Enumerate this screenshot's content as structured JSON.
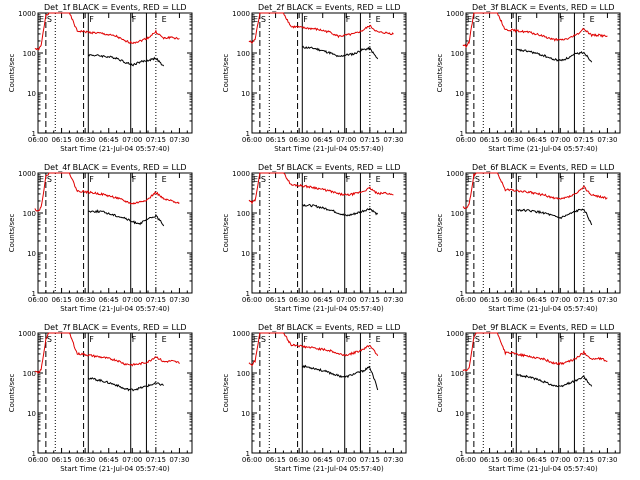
{
  "figure": {
    "time_ticks": [
      "06:00",
      "06:15",
      "06:30",
      "06:45",
      "07:00",
      "07:15",
      "07:30"
    ],
    "y_ticks": [
      "1000",
      "100",
      "10",
      "1"
    ],
    "ylabel": "Counts/sec",
    "xlabel": "Start Time (21-Jul-04 05:57:40)",
    "colors": {
      "events": "#000000",
      "lld": "#e00000"
    },
    "markers": {
      "E_start": "06:00",
      "S_dash": "06:05",
      "S_dot": "06:11",
      "F_dash": "06:29",
      "F_solid_1": "06:32",
      "F_solid_2": "06:59",
      "E_solid": "07:09",
      "E_dot": "07:15",
      "E_end": "07:18"
    }
  },
  "chart_data": [
    {
      "type": "line",
      "title": "Det_1f BLACK = Events, RED = LLD",
      "xlabel": "Start Time (21-Jul-04 05:57:40)",
      "ylabel": "Counts/sec",
      "scale": "log",
      "ylim": [
        1,
        1000
      ],
      "x": [
        "05:58",
        "06:00",
        "06:02",
        "06:05",
        "06:07",
        "06:10",
        "06:15",
        "06:20",
        "06:25",
        "06:28",
        "06:32",
        "06:40",
        "06:50",
        "06:55",
        "07:00",
        "07:05",
        "07:10",
        "07:15",
        "07:20",
        "07:25",
        "07:30"
      ],
      "series": [
        {
          "name": "LLD",
          "color": "red",
          "values": [
            130,
            120,
            150,
            900,
            1000,
            1000,
            1000,
            1000,
            350,
            350,
            330,
            310,
            260,
            200,
            180,
            200,
            240,
            340,
            230,
            250,
            220
          ]
        },
        {
          "name": "Events",
          "color": "black",
          "values": [
            null,
            null,
            null,
            null,
            null,
            null,
            null,
            null,
            null,
            null,
            90,
            85,
            75,
            60,
            50,
            60,
            65,
            75,
            45,
            null,
            null
          ]
        }
      ]
    },
    {
      "type": "line",
      "title": "Det_2f BLACK = Events, RED = LLD",
      "xlabel": "Start Time (21-Jul-04 05:57:40)",
      "ylabel": "Counts/sec",
      "scale": "log",
      "ylim": [
        1,
        1000
      ],
      "x": [
        "05:58",
        "06:00",
        "06:02",
        "06:05",
        "06:07",
        "06:10",
        "06:15",
        "06:20",
        "06:25",
        "06:28",
        "06:32",
        "06:40",
        "06:50",
        "06:55",
        "07:00",
        "07:05",
        "07:10",
        "07:15",
        "07:20",
        "07:25",
        "07:30"
      ],
      "series": [
        {
          "name": "LLD",
          "color": "red",
          "values": [
            200,
            180,
            220,
            1000,
            1000,
            1000,
            1000,
            1000,
            450,
            450,
            430,
            400,
            330,
            260,
            280,
            300,
            360,
            480,
            330,
            320,
            300
          ]
        },
        {
          "name": "Events",
          "color": "black",
          "values": [
            null,
            null,
            null,
            null,
            null,
            null,
            null,
            null,
            null,
            null,
            140,
            130,
            100,
            80,
            90,
            95,
            120,
            130,
            70,
            null,
            null
          ]
        }
      ]
    },
    {
      "type": "line",
      "title": "Det_3f BLACK = Events, RED = LLD",
      "xlabel": "Start Time (21-Jul-04 05:57:40)",
      "ylabel": "Counts/sec",
      "scale": "log",
      "ylim": [
        1,
        1000
      ],
      "x": [
        "05:58",
        "06:00",
        "06:02",
        "06:05",
        "06:07",
        "06:10",
        "06:15",
        "06:20",
        "06:25",
        "06:28",
        "06:32",
        "06:40",
        "06:50",
        "06:55",
        "07:00",
        "07:05",
        "07:10",
        "07:15",
        "07:20",
        "07:25",
        "07:30"
      ],
      "series": [
        {
          "name": "LLD",
          "color": "red",
          "values": [
            160,
            150,
            190,
            1000,
            1000,
            1000,
            1000,
            1000,
            380,
            380,
            360,
            330,
            260,
            220,
            210,
            230,
            280,
            400,
            280,
            280,
            260
          ]
        },
        {
          "name": "Events",
          "color": "black",
          "values": [
            null,
            null,
            null,
            null,
            null,
            null,
            null,
            null,
            null,
            null,
            120,
            110,
            85,
            70,
            65,
            75,
            95,
            105,
            60,
            null,
            null
          ]
        }
      ]
    },
    {
      "type": "line",
      "title": "Det_4f BLACK = Events, RED = LLD",
      "xlabel": "Start Time (21-Jul-04 05:57:40)",
      "ylabel": "Counts/sec",
      "scale": "log",
      "ylim": [
        1,
        1000
      ],
      "x": [
        "05:58",
        "06:00",
        "06:02",
        "06:05",
        "06:07",
        "06:10",
        "06:15",
        "06:20",
        "06:25",
        "06:28",
        "06:32",
        "06:40",
        "06:50",
        "06:55",
        "07:00",
        "07:05",
        "07:10",
        "07:15",
        "07:20",
        "07:25",
        "07:30"
      ],
      "series": [
        {
          "name": "LLD",
          "color": "red",
          "values": [
            130,
            110,
            140,
            800,
            1000,
            1000,
            1000,
            1000,
            350,
            350,
            330,
            300,
            240,
            200,
            170,
            190,
            220,
            330,
            220,
            200,
            180
          ]
        },
        {
          "name": "Events",
          "color": "black",
          "values": [
            null,
            null,
            null,
            null,
            null,
            null,
            null,
            null,
            null,
            null,
            110,
            110,
            85,
            75,
            60,
            55,
            70,
            85,
            50,
            null,
            null
          ]
        }
      ]
    },
    {
      "type": "line",
      "title": "Det_5f BLACK = Events, RED = LLD",
      "xlabel": "Start Time (21-Jul-04 05:57:40)",
      "ylabel": "Counts/sec",
      "scale": "log",
      "ylim": [
        1,
        1000
      ],
      "x": [
        "05:58",
        "06:00",
        "06:02",
        "06:05",
        "06:07",
        "06:10",
        "06:15",
        "06:20",
        "06:25",
        "06:28",
        "06:32",
        "06:40",
        "06:50",
        "06:55",
        "07:00",
        "07:05",
        "07:10",
        "07:15",
        "07:20",
        "07:25",
        "07:30"
      ],
      "series": [
        {
          "name": "LLD",
          "color": "red",
          "values": [
            200,
            180,
            210,
            1000,
            1000,
            1000,
            1000,
            1000,
            500,
            500,
            480,
            430,
            350,
            300,
            280,
            300,
            340,
            420,
            300,
            320,
            280
          ]
        },
        {
          "name": "Events",
          "color": "black",
          "values": [
            null,
            null,
            null,
            null,
            null,
            null,
            null,
            null,
            null,
            null,
            160,
            150,
            120,
            100,
            85,
            95,
            110,
            130,
            90,
            null,
            null
          ]
        }
      ]
    },
    {
      "type": "line",
      "title": "Det_6f BLACK = Events, RED = LLD",
      "xlabel": "Start Time (21-Jul-04 05:57:40)",
      "ylabel": "Counts/sec",
      "scale": "log",
      "ylim": [
        1,
        1000
      ],
      "x": [
        "05:58",
        "06:00",
        "06:02",
        "06:05",
        "06:07",
        "06:10",
        "06:15",
        "06:20",
        "06:25",
        "06:28",
        "06:32",
        "06:40",
        "06:50",
        "06:55",
        "07:00",
        "07:05",
        "07:10",
        "07:15",
        "07:20",
        "07:25",
        "07:30"
      ],
      "series": [
        {
          "name": "LLD",
          "color": "red",
          "values": [
            140,
            130,
            160,
            900,
            1000,
            1000,
            1000,
            1000,
            380,
            380,
            360,
            330,
            280,
            240,
            220,
            250,
            300,
            450,
            280,
            260,
            230
          ]
        },
        {
          "name": "Events",
          "color": "black",
          "values": [
            null,
            null,
            null,
            null,
            null,
            null,
            null,
            null,
            null,
            null,
            120,
            115,
            100,
            85,
            75,
            90,
            110,
            130,
            50,
            null,
            null
          ]
        }
      ]
    },
    {
      "type": "line",
      "title": "Det_7f BLACK = Events, RED = LLD",
      "xlabel": "Start Time (21-Jul-04 05:57:40)",
      "ylabel": "Counts/sec",
      "scale": "log",
      "ylim": [
        1,
        1000
      ],
      "x": [
        "05:58",
        "06:00",
        "06:02",
        "06:05",
        "06:07",
        "06:10",
        "06:15",
        "06:20",
        "06:25",
        "06:28",
        "06:32",
        "06:40",
        "06:50",
        "06:55",
        "07:00",
        "07:05",
        "07:10",
        "07:15",
        "07:20",
        "07:25",
        "07:30"
      ],
      "series": [
        {
          "name": "LLD",
          "color": "red",
          "values": [
            110,
            100,
            120,
            700,
            1000,
            1000,
            1000,
            1000,
            300,
            300,
            280,
            250,
            210,
            170,
            160,
            170,
            190,
            260,
            190,
            200,
            180
          ]
        },
        {
          "name": "Events",
          "color": "black",
          "values": [
            null,
            null,
            null,
            null,
            null,
            null,
            null,
            null,
            null,
            null,
            75,
            65,
            50,
            40,
            38,
            42,
            48,
            55,
            50,
            null,
            null
          ]
        }
      ]
    },
    {
      "type": "line",
      "title": "Det_8f BLACK = Events, RED = LLD",
      "xlabel": "Start Time (21-Jul-04 05:57:40)",
      "ylabel": "Counts/sec",
      "scale": "log",
      "ylim": [
        1,
        1000
      ],
      "x": [
        "05:58",
        "06:00",
        "06:02",
        "06:05",
        "06:07",
        "06:10",
        "06:15",
        "06:20",
        "06:25",
        "06:28",
        "06:32",
        "06:40",
        "06:50",
        "06:55",
        "07:00",
        "07:05",
        "07:10",
        "07:15",
        "07:20",
        "07:25",
        "07:30"
      ],
      "series": [
        {
          "name": "LLD",
          "color": "red",
          "values": [
            180,
            160,
            200,
            1000,
            1000,
            1000,
            1000,
            1000,
            500,
            500,
            460,
            420,
            360,
            300,
            280,
            320,
            380,
            500,
            280,
            null,
            null
          ]
        },
        {
          "name": "Events",
          "color": "black",
          "values": [
            null,
            null,
            null,
            null,
            null,
            null,
            null,
            null,
            null,
            null,
            150,
            130,
            100,
            85,
            80,
            95,
            110,
            140,
            40,
            null,
            null
          ]
        }
      ]
    },
    {
      "type": "line",
      "title": "Det_9f BLACK = Events, RED = LLD",
      "xlabel": "Start Time (21-Jul-04 05:57:40)",
      "ylabel": "Counts/sec",
      "scale": "log",
      "ylim": [
        1,
        1000
      ],
      "x": [
        "05:58",
        "06:00",
        "06:02",
        "06:05",
        "06:07",
        "06:10",
        "06:15",
        "06:20",
        "06:25",
        "06:28",
        "06:32",
        "06:40",
        "06:50",
        "06:55",
        "07:00",
        "07:05",
        "07:10",
        "07:15",
        "07:20",
        "07:25",
        "07:30"
      ],
      "series": [
        {
          "name": "LLD",
          "color": "red",
          "values": [
            120,
            110,
            130,
            800,
            1000,
            1000,
            1000,
            1000,
            320,
            320,
            300,
            260,
            220,
            180,
            170,
            190,
            230,
            330,
            220,
            230,
            200
          ]
        },
        {
          "name": "Events",
          "color": "black",
          "values": [
            null,
            null,
            null,
            null,
            null,
            null,
            null,
            null,
            null,
            null,
            90,
            80,
            60,
            50,
            45,
            55,
            65,
            80,
            45,
            null,
            null
          ]
        }
      ]
    }
  ]
}
